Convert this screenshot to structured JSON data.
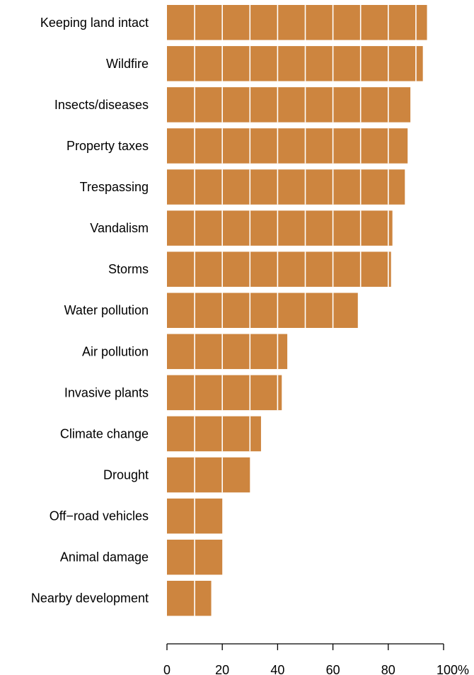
{
  "chart_data": {
    "type": "bar",
    "orientation": "horizontal",
    "categories": [
      "Keeping land intact",
      "Wildfire",
      "Insects/diseases",
      "Property taxes",
      "Trespassing",
      "Vandalism",
      "Storms",
      "Water pollution",
      "Air pollution",
      "Invasive plants",
      "Climate change",
      "Drought",
      "Off−road vehicles",
      "Animal damage",
      "Nearby development"
    ],
    "values": [
      94,
      92.5,
      88,
      87,
      86,
      81.5,
      81,
      69,
      43.5,
      41.5,
      34,
      30,
      20,
      20,
      16
    ],
    "xlim": [
      0,
      100
    ],
    "x_ticks": [
      0,
      20,
      40,
      60,
      80,
      100
    ],
    "x_tick_labels": [
      "0",
      "20",
      "40",
      "60",
      "80",
      "100%"
    ],
    "title": "",
    "xlabel": "",
    "ylabel": "",
    "grid": "vertical white lines every 10 units drawn over the bars",
    "legend": "none",
    "bar_color": "#cd853f",
    "gridline_color": "#ffffff"
  }
}
